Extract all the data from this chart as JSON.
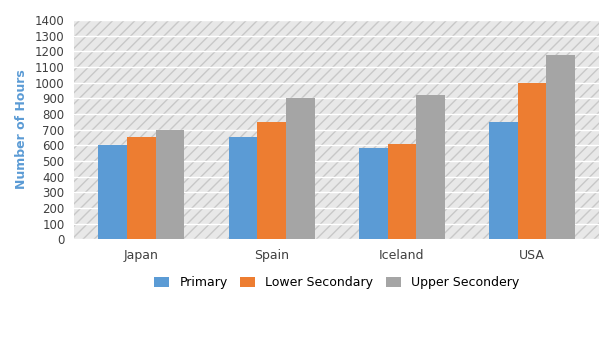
{
  "categories": [
    "Japan",
    "Spain",
    "Iceland",
    "USA"
  ],
  "series": {
    "Primary": [
      600,
      650,
      580,
      750
    ],
    "Lower Secondary": [
      650,
      750,
      610,
      1000
    ],
    "Upper Secondery": [
      700,
      900,
      920,
      1175
    ]
  },
  "colors": {
    "Primary": "#5B9BD5",
    "Lower Secondary": "#ED7D31",
    "Upper Secondery": "#A5A5A5"
  },
  "ylabel": "Number of Hours",
  "ylim": [
    0,
    1400
  ],
  "yticks": [
    0,
    100,
    200,
    300,
    400,
    500,
    600,
    700,
    800,
    900,
    1000,
    1100,
    1200,
    1300,
    1400
  ],
  "legend_labels": [
    "Primary",
    "Lower Secondary",
    "Upper Secondery"
  ],
  "bar_width": 0.22,
  "background_color": "#ffffff",
  "plot_bg_color": "#f0f0f0",
  "grid_color": "#ffffff"
}
